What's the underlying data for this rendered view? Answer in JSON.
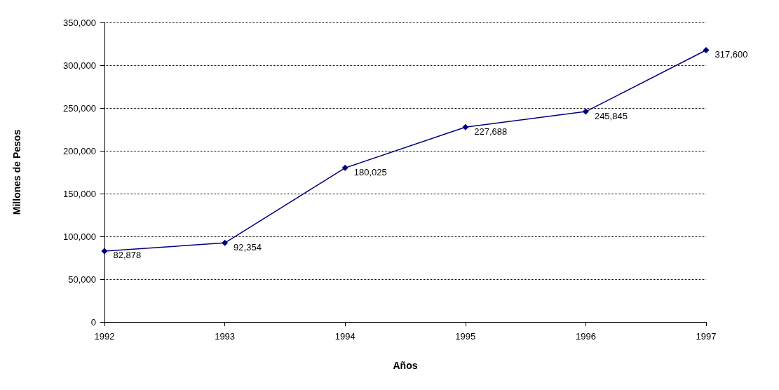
{
  "chart_data": {
    "type": "line",
    "xlabel": "Años",
    "ylabel": "Millones de Pesos",
    "x": [
      1992,
      1993,
      1994,
      1995,
      1996,
      1997
    ],
    "series": [
      {
        "color": "#000080",
        "values": [
          82878,
          92354,
          180025,
          227688,
          245845,
          317600
        ],
        "value_labels": [
          "82,878",
          "92,354",
          "180,025",
          "227,688",
          "245,845",
          "317,600"
        ]
      }
    ],
    "xlim": [
      1992,
      1997
    ],
    "xticks": [
      1992,
      1993,
      1994,
      1995,
      1996,
      1997
    ],
    "ylim": [
      0,
      350000
    ],
    "yticks": [
      0,
      {
        "value": 50000,
        "label": "50,000"
      },
      {
        "value": 100000,
        "label": "100,000"
      },
      {
        "value": 150000,
        "label": "150,000"
      },
      {
        "value": 200000,
        "label": "200,000"
      },
      {
        "value": 250000,
        "label": "250,000"
      },
      {
        "value": 300000,
        "label": "300,000"
      },
      {
        "value": 350000,
        "label": "350,000"
      }
    ],
    "grid": "y",
    "marker": "diamond",
    "line_style": "solid"
  }
}
